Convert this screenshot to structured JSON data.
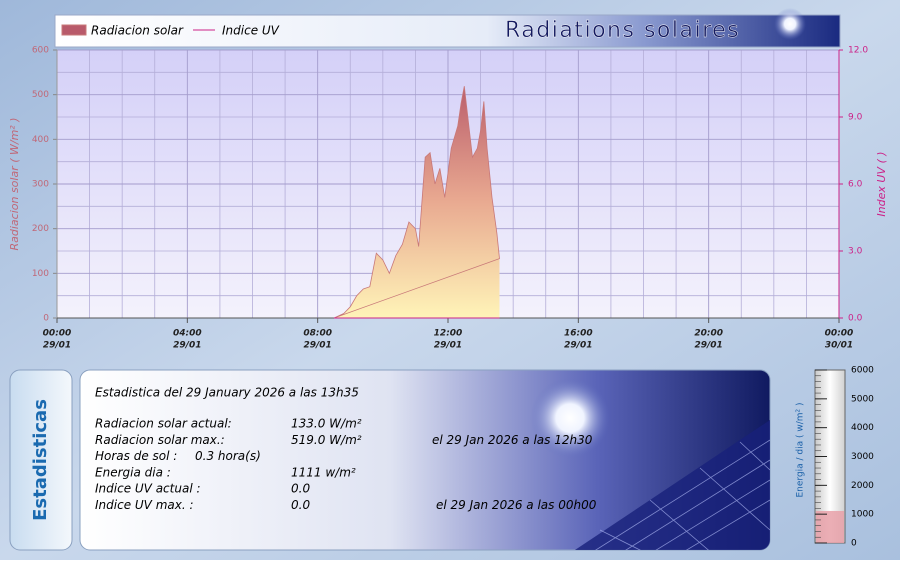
{
  "chart_data": [
    {
      "type": "area",
      "title": "Radiations solaires",
      "y_label": "Radiacion solar ( W/m² )",
      "y2_label": "Index UV ( )",
      "x": [
        8.5,
        8.8,
        9.0,
        9.2,
        9.4,
        9.6,
        9.8,
        10.0,
        10.2,
        10.4,
        10.6,
        10.8,
        11.0,
        11.1,
        11.3,
        11.45,
        11.6,
        11.75,
        11.9,
        12.1,
        12.3,
        12.4,
        12.5,
        12.75,
        12.9,
        13.0,
        13.1,
        13.2,
        13.35,
        13.5,
        13.58
      ],
      "series": [
        {
          "name": "Radiacion solar",
          "color": "#c87878",
          "values": [
            0,
            10,
            25,
            50,
            65,
            70,
            145,
            130,
            100,
            140,
            165,
            215,
            200,
            160,
            360,
            370,
            300,
            335,
            270,
            380,
            430,
            480,
            519,
            360,
            380,
            420,
            485,
            380,
            270,
            190,
            133
          ]
        },
        {
          "name": "Indice UV",
          "color": "#cc2288",
          "axis": "y2",
          "values": [
            0,
            0,
            0,
            0,
            0,
            0,
            0,
            0,
            0,
            0,
            0,
            0,
            0,
            0,
            0,
            0,
            0,
            0,
            0,
            0,
            0,
            0,
            0,
            0,
            0,
            0,
            0,
            0,
            0,
            0,
            0
          ]
        }
      ],
      "xlim": [
        0,
        24
      ],
      "xticks": [
        {
          "value": 0,
          "label": "00:00",
          "date": "29/01"
        },
        {
          "value": 4,
          "label": "04:00",
          "date": "29/01"
        },
        {
          "value": 8,
          "label": "08:00",
          "date": "29/01"
        },
        {
          "value": 12,
          "label": "12:00",
          "date": "29/01"
        },
        {
          "value": 16,
          "label": "16:00",
          "date": "29/01"
        },
        {
          "value": 20,
          "label": "20:00",
          "date": "29/01"
        },
        {
          "value": 24,
          "label": "00:00",
          "date": "30/01"
        }
      ],
      "ylim": [
        0,
        600
      ],
      "yticks": [
        0,
        100,
        200,
        300,
        400,
        500,
        600
      ],
      "y2lim": [
        0,
        12
      ],
      "y2ticks": [
        {
          "value": 0,
          "label": "0.0"
        },
        {
          "value": 3,
          "label": "3.0"
        },
        {
          "value": 6,
          "label": "6.0"
        },
        {
          "value": 9,
          "label": "9.0"
        },
        {
          "value": 12,
          "label": "12.0"
        }
      ],
      "xgrid": [
        1,
        2,
        3,
        5,
        6,
        7,
        9,
        10,
        11,
        13,
        14,
        15,
        17,
        18,
        19,
        21,
        22,
        23
      ],
      "ygrid": [
        50,
        150,
        250,
        350,
        450,
        550
      ],
      "grid": true
    },
    {
      "type": "gauge",
      "y_label": "Energia / dia ( w/m² )",
      "values": [
        1111
      ],
      "color": "#e8a0a8",
      "ylim": [
        0,
        6000
      ],
      "yticks": [
        0,
        1000,
        2000,
        3000,
        4000,
        5000,
        6000
      ]
    }
  ],
  "stats": {
    "tab": "Estadisticas",
    "heading": "Estadistica del 29 January 2026 a las 13h35",
    "rows": [
      {
        "label": "Radiacion solar actual:",
        "value": "133.0 W/m²"
      },
      {
        "label": "Radiacion solar max.:",
        "value": "519.0 W/m²",
        "note": "el 29 Jan 2026 a las 12h30"
      },
      {
        "label": "Horas de sol :",
        "value": "0.3 hora(s)"
      },
      {
        "label": "Energia dia :",
        "value": "1111 w/m²"
      },
      {
        "label": "Indice UV actual :",
        "value": "0.0"
      },
      {
        "label": "Indice UV max. :",
        "value": "0.0",
        "note": "el 29 Jan 2026 a las 00h00"
      }
    ]
  }
}
